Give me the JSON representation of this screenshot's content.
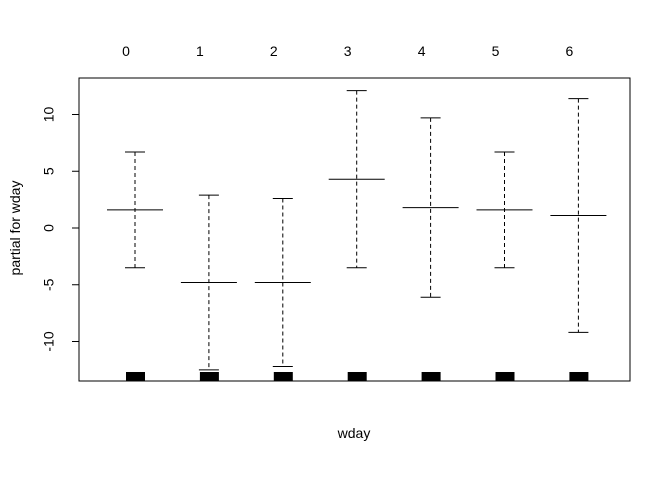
{
  "chart_data": {
    "type": "errorbar",
    "xlabel": "wday",
    "ylabel": "partial for wday",
    "categories": [
      "0",
      "1",
      "2",
      "3",
      "4",
      "5",
      "6"
    ],
    "estimate": [
      1.6,
      -4.8,
      -4.8,
      4.3,
      1.8,
      1.6,
      1.1
    ],
    "upper": [
      6.7,
      2.9,
      2.6,
      12.1,
      9.7,
      6.7,
      11.4
    ],
    "lower": [
      -3.5,
      -12.5,
      -12.2,
      -3.5,
      -6.1,
      -3.5,
      -9.2
    ],
    "yticks": [
      -10,
      -5,
      0,
      5,
      10
    ],
    "ylim": [
      -13.5,
      13.3
    ],
    "rug": [
      "0",
      "1",
      "2",
      "3",
      "4",
      "5",
      "6"
    ],
    "grid": false,
    "legend": "none"
  }
}
